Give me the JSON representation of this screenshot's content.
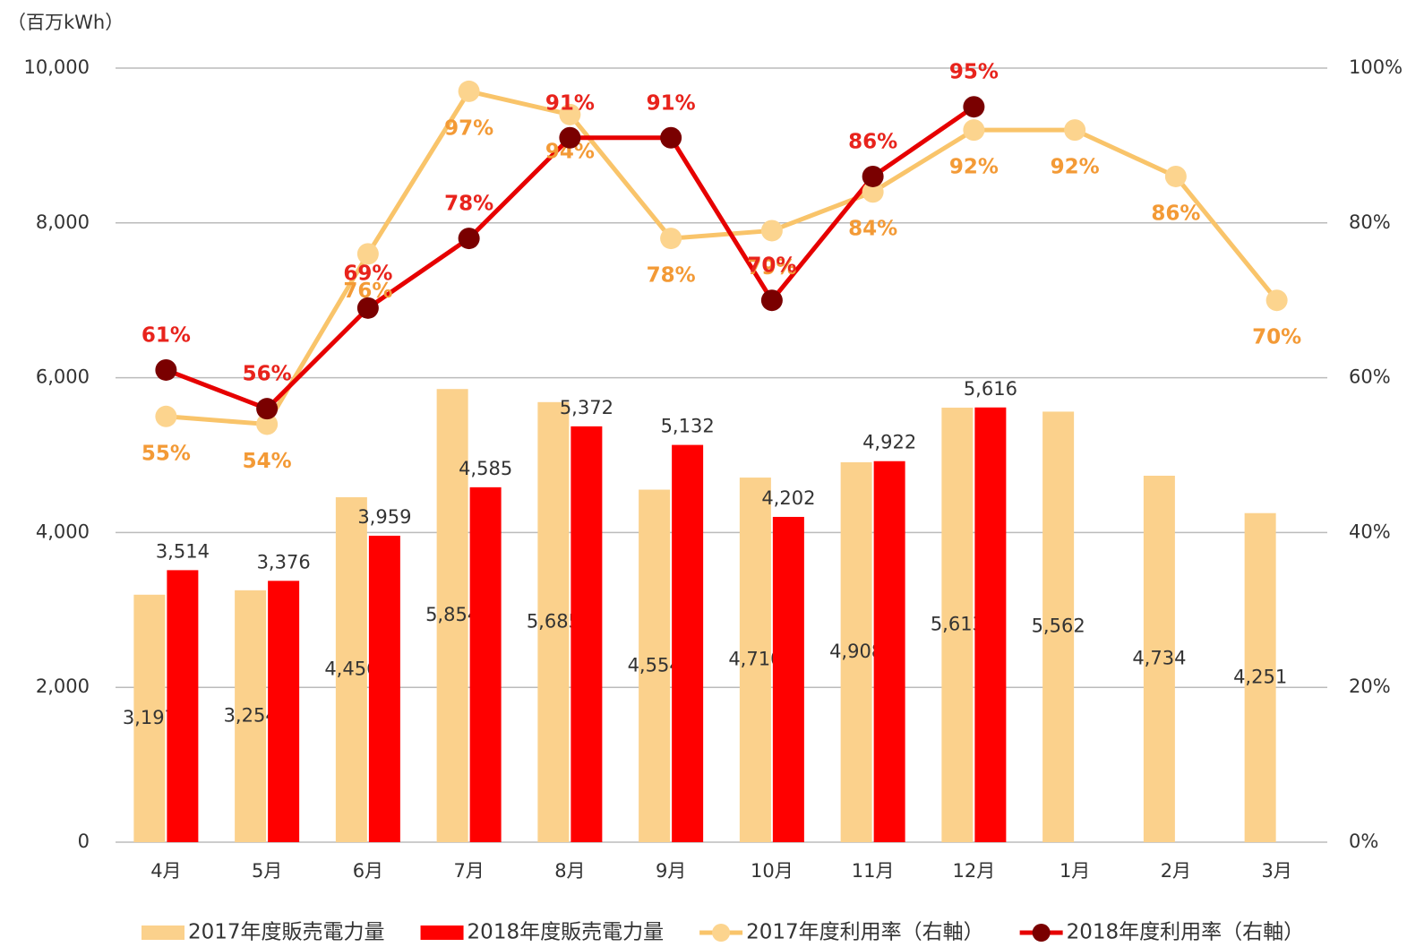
{
  "chart_data": {
    "type": "bar",
    "y_label": "（百万kWh）",
    "categories": [
      "4月",
      "5月",
      "6月",
      "7月",
      "8月",
      "9月",
      "10月",
      "11月",
      "12月",
      "1月",
      "2月",
      "3月"
    ],
    "ylim": [
      0,
      10000
    ],
    "yticks": [
      0,
      {
        "value": 2000,
        "label": "2,000"
      },
      {
        "value": 4000,
        "label": "4,000"
      },
      {
        "value": 6000,
        "label": "6,000"
      },
      {
        "value": 8000,
        "label": "8,000"
      },
      {
        "value": 10000,
        "label": "10,000"
      }
    ],
    "y2lim": [
      0,
      100
    ],
    "y2ticks": [
      {
        "value": 0,
        "label": "0%"
      },
      {
        "value": 20,
        "label": "20%"
      },
      {
        "value": 40,
        "label": "40%"
      },
      {
        "value": 60,
        "label": "60%"
      },
      {
        "value": 80,
        "label": "80%"
      },
      {
        "value": 100,
        "label": "100%"
      }
    ],
    "grid": true,
    "legend": "bottom",
    "series": [
      {
        "name": "2017年度販売電力量",
        "type": "bar",
        "color": "#fbd18c",
        "values": [
          3197,
          3254,
          4456,
          5854,
          5685,
          4554,
          4710,
          4908,
          5613,
          5562,
          4734,
          4251
        ],
        "value_labels": [
          "3,197",
          "3,254",
          "4,456",
          "5,854",
          "5,685",
          "4,554",
          "4,710",
          "4,908",
          "5,613",
          "5,562",
          "4,734",
          "4,251"
        ]
      },
      {
        "name": "2018年度販売電力量",
        "type": "bar",
        "color": "#ff0000",
        "values": [
          3514,
          3376,
          3959,
          4585,
          5372,
          5132,
          4202,
          4922,
          5616,
          null,
          null,
          null
        ],
        "value_labels": [
          "3,514",
          "3,376",
          "3,959",
          "4,585",
          "5,372",
          "5,132",
          "4,202",
          "4,922",
          "5,616",
          null,
          null,
          null
        ]
      },
      {
        "name": "2017年度利用率（右軸）",
        "type": "line",
        "axis": "y2",
        "color": "#f9c46a",
        "marker_color": "#fcd48e",
        "label_color": "#f39a36",
        "values": [
          55,
          54,
          76,
          97,
          94,
          78,
          79,
          84,
          92,
          92,
          86,
          70
        ],
        "value_labels": [
          "55%",
          "54%",
          "76%",
          "97%",
          "94%",
          "78%",
          "79%",
          "84%",
          "92%",
          "92%",
          "86%",
          "70%"
        ]
      },
      {
        "name": "2018年度利用率（右軸）",
        "type": "line",
        "axis": "y2",
        "color": "#e60000",
        "marker_color": "#7a0000",
        "label_color": "#e8231c",
        "values": [
          61,
          56,
          69,
          78,
          91,
          91,
          70,
          86,
          95,
          null,
          null,
          null
        ],
        "value_labels": [
          "61%",
          "56%",
          "69%",
          "78%",
          "91%",
          "91%",
          "70%",
          "86%",
          "95%",
          null,
          null,
          null
        ]
      }
    ]
  }
}
